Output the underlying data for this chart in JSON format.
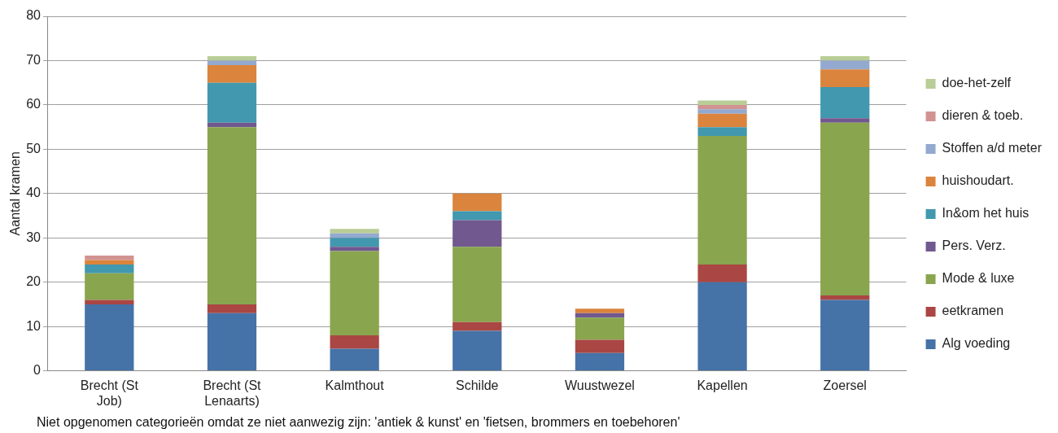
{
  "chart_data": {
    "type": "bar",
    "stacked": true,
    "ylabel": "Aantal kramen",
    "categories": [
      "Brecht (St Job)",
      "Brecht (St Lenaarts)",
      "Kalmthout",
      "Schilde",
      "Wuustwezel",
      "Kapellen",
      "Zoersel"
    ],
    "series": [
      {
        "name": "Alg voeding",
        "color": "#4572a7",
        "values": [
          15,
          13,
          5,
          9,
          4,
          20,
          16
        ]
      },
      {
        "name": "eetkramen",
        "color": "#aa4643",
        "values": [
          1,
          2,
          3,
          2,
          3,
          4,
          1
        ]
      },
      {
        "name": "Mode & luxe",
        "color": "#89a54e",
        "values": [
          6,
          40,
          19,
          17,
          5,
          29,
          39
        ]
      },
      {
        "name": "Pers. Verz.",
        "color": "#71588f",
        "values": [
          0,
          1,
          1,
          6,
          1,
          0,
          1
        ]
      },
      {
        "name": "In&om het huis",
        "color": "#4198af",
        "values": [
          2,
          9,
          2,
          2,
          0,
          2,
          7
        ]
      },
      {
        "name": "huishoudart.",
        "color": "#db843d",
        "values": [
          1,
          4,
          0,
          4,
          1,
          3,
          4
        ]
      },
      {
        "name": "Stoffen a/d meter",
        "color": "#93a9cf",
        "values": [
          0,
          1,
          1,
          0,
          0,
          1,
          2
        ]
      },
      {
        "name": "dieren & toeb.",
        "color": "#d19392",
        "values": [
          1,
          0,
          0,
          0,
          0,
          1,
          0
        ]
      },
      {
        "name": "doe-het-zelf",
        "color": "#b9cd96",
        "values": [
          0,
          1,
          1,
          0,
          0,
          1,
          1
        ]
      }
    ],
    "ylim": [
      0,
      80
    ],
    "yticks": [
      0,
      10,
      20,
      30,
      40,
      50,
      60,
      70,
      80
    ],
    "grid": "y",
    "legend": "right",
    "annotations": [
      "Niet opgenomen categorieën omdat ze niet aanwezig zijn: 'antiek & kunst' en 'fietsen, brommers en toebehoren'"
    ]
  }
}
